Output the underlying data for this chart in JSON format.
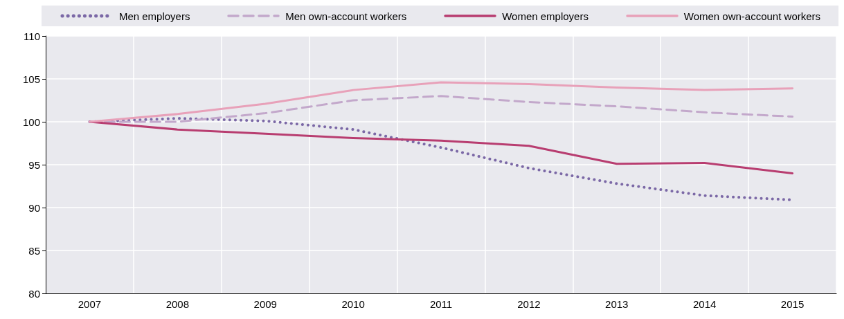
{
  "chart_data": {
    "type": "line",
    "categories": [
      "2007",
      "2008",
      "2009",
      "2010",
      "2011",
      "2012",
      "2013",
      "2014",
      "2015"
    ],
    "ylim": [
      80,
      110
    ],
    "yticks": [
      80,
      85,
      90,
      95,
      100,
      105,
      110
    ],
    "grid": true,
    "legend": "top",
    "marker": "none",
    "series": [
      {
        "name": "Men employers",
        "color": "#7b68a6",
        "line_style": "dotted",
        "values": [
          100,
          100.4,
          100.1,
          99.1,
          97.0,
          94.6,
          92.8,
          91.4,
          90.9
        ]
      },
      {
        "name": "Men own-account workers",
        "color": "#c3a8cb",
        "line_style": "dashed",
        "values": [
          100,
          100.0,
          101.0,
          102.5,
          103.0,
          102.3,
          101.8,
          101.1,
          100.6
        ]
      },
      {
        "name": "Women employers",
        "color": "#b83d70",
        "line_style": "solid",
        "values": [
          100,
          99.1,
          98.6,
          98.1,
          97.8,
          97.2,
          95.1,
          95.2,
          94.0
        ]
      },
      {
        "name": "Women own-account workers",
        "color": "#e8a1b9",
        "line_style": "solid",
        "values": [
          100,
          100.9,
          102.1,
          103.7,
          104.6,
          104.4,
          104.0,
          103.7,
          103.9
        ]
      }
    ]
  }
}
